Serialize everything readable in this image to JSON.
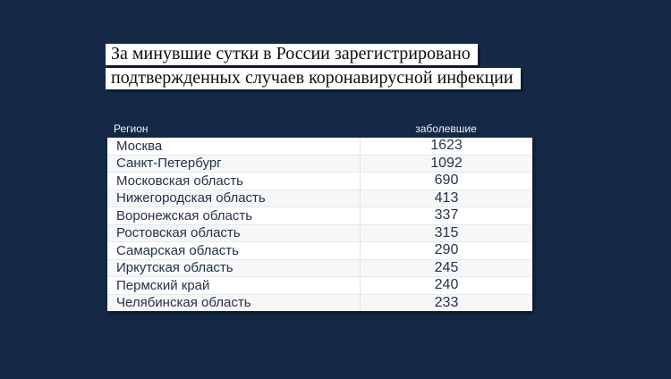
{
  "page": {
    "background_color": "#152947",
    "highlight_color": "#ffffff",
    "text_color": "#263349"
  },
  "headline": {
    "line1": "За минувшие сутки в России зарегистрировано",
    "line2": "подтвержденных случаев коронавирусной инфекции"
  },
  "table": {
    "columns": {
      "region": "Регион",
      "cases": "заболевшие"
    },
    "rows": [
      {
        "region": "Москва",
        "cases": "1623"
      },
      {
        "region": "Санкт-Петербург",
        "cases": "1092"
      },
      {
        "region": "Московская область",
        "cases": "690"
      },
      {
        "region": "Нижегородская область",
        "cases": "413"
      },
      {
        "region": "Воронежская область",
        "cases": "337"
      },
      {
        "region": "Ростовская область",
        "cases": "315"
      },
      {
        "region": "Самарская область",
        "cases": "290"
      },
      {
        "region": "Иркутская область",
        "cases": "245"
      },
      {
        "region": "Пермский край",
        "cases": "240"
      },
      {
        "region": "Челябинская область",
        "cases": "233"
      }
    ]
  },
  "chart_data": {
    "type": "table",
    "title": "За минувшие сутки в России зарегистрировано подтвержденных случаев коронавирусной инфекции",
    "columns": [
      "Регион",
      "заболевшие"
    ],
    "categories": [
      "Москва",
      "Санкт-Петербург",
      "Московская область",
      "Нижегородская область",
      "Воронежская область",
      "Ростовская область",
      "Самарская область",
      "Иркутская область",
      "Пермский край",
      "Челябинская область"
    ],
    "values": [
      1623,
      1092,
      690,
      413,
      337,
      315,
      290,
      245,
      240,
      233
    ],
    "legend_position": "none",
    "grid": false
  }
}
